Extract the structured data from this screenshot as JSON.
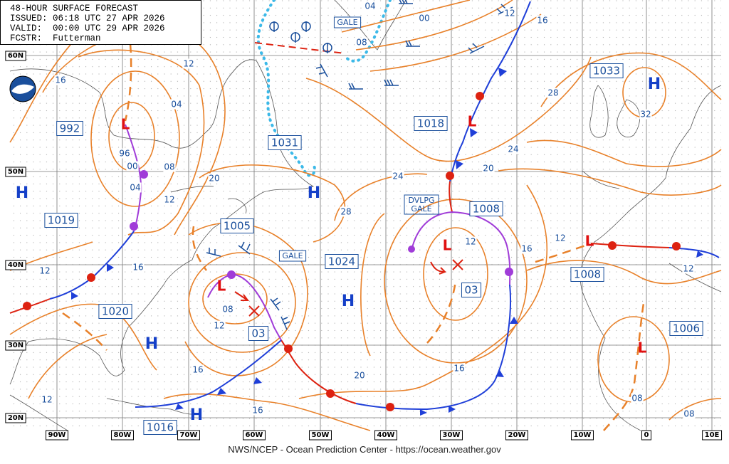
{
  "header": {
    "title": "48-HOUR SURFACE FORECAST",
    "issued": "ISSUED: 06:18 UTC 27 APR 2026",
    "valid": "VALID:  00:00 UTC 29 APR 2026",
    "forecaster": "FCSTR:  Futterman"
  },
  "footer": "NWS/NCEP - Ocean Prediction Center - https://ocean.weather.gov",
  "latitudes": [
    "60N",
    "50N",
    "40N",
    "30N",
    "20N"
  ],
  "longitudes": [
    "90W",
    "80W",
    "70W",
    "60W",
    "50W",
    "40W",
    "30W",
    "20W",
    "10W",
    "0",
    "10E"
  ],
  "pressure_labels": [
    "992",
    "1031",
    "1018",
    "1033",
    "1019",
    "1005",
    "1024",
    "1008",
    "1008",
    "1020",
    "1016",
    "1006",
    "03",
    "03"
  ],
  "warnings": [
    "GALE",
    "GALE"
  ],
  "developing_gale": [
    "DVLPG",
    "GALE"
  ],
  "isobar_labels": [
    "16",
    "12",
    "04",
    "96",
    "00",
    "04",
    "08",
    "12",
    "20",
    "28",
    "24",
    "20",
    "24",
    "28",
    "32",
    "00",
    "04",
    "08",
    "12",
    "16",
    "12",
    "16",
    "12",
    "12",
    "12",
    "16",
    "08",
    "12",
    "20",
    "16",
    "16",
    "16",
    "12",
    "08",
    "08"
  ],
  "highs": [
    "H",
    "H",
    "H",
    "H",
    "H",
    "H"
  ],
  "lows": [
    "L",
    "L",
    "L",
    "L",
    "L",
    "L"
  ]
}
